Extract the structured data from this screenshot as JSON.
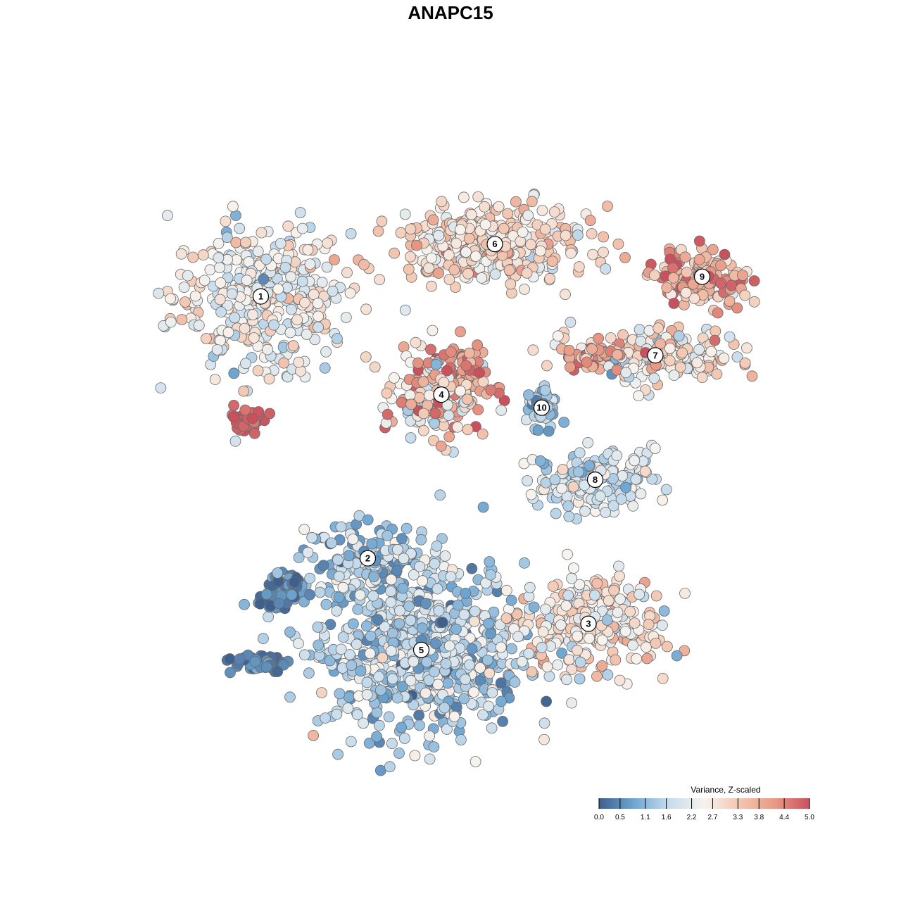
{
  "chart_data": {
    "type": "scatter",
    "title": "ANAPC15",
    "xlabel": "",
    "ylabel": "",
    "grid": false,
    "legend": {
      "title": "Variance, Z-scaled",
      "placement": "bottom-right",
      "min": 0.0,
      "max": 5.0,
      "ticks": [
        "0.0",
        "0.5",
        "1.1",
        "1.6",
        "2.2",
        "2.7",
        "3.3",
        "3.8",
        "4.4",
        "5.0"
      ],
      "tick_values": [
        0.0,
        0.5,
        1.1,
        1.6,
        2.2,
        2.7,
        3.3,
        3.8,
        4.4,
        5.0
      ]
    },
    "colors": {
      "low": "#3f5f8c",
      "mid_low": "#6fa6d2",
      "light_blue": "#c6dcec",
      "mid": "#f7f3ee",
      "light_red": "#f3c6b0",
      "mid_high": "#e99a86",
      "high": "#c9505d"
    },
    "x_range": [
      -50,
      50
    ],
    "y_range": [
      -50,
      50
    ],
    "clusters": [
      {
        "label": "1",
        "x": -31,
        "y": 23,
        "sx": 12,
        "sy": 10,
        "n": 380,
        "mean": 2.4,
        "sd": 0.55
      },
      {
        "label": "2",
        "x": -15,
        "y": -17,
        "sx": 9,
        "sy": 5,
        "n": 140,
        "mean": 1.3,
        "sd": 0.7
      },
      {
        "label": "3",
        "x": 18,
        "y": -27,
        "sx": 10,
        "sy": 7,
        "n": 260,
        "mean": 2.7,
        "sd": 0.6
      },
      {
        "label": "4",
        "x": -4,
        "y": 8,
        "sx": 6,
        "sy": 6,
        "n": 230,
        "mean": 3.0,
        "sd": 1.1
      },
      {
        "label": "5",
        "x": -7,
        "y": -31,
        "sx": 14,
        "sy": 12,
        "n": 720,
        "mean": 1.5,
        "sd": 0.6
      },
      {
        "label": "6",
        "x": 4,
        "y": 31,
        "sx": 13,
        "sy": 5,
        "n": 380,
        "mean": 2.9,
        "sd": 0.55
      },
      {
        "label": "7",
        "x": 28,
        "y": 14,
        "sx": 11,
        "sy": 4,
        "n": 220,
        "mean": 2.8,
        "sd": 0.8
      },
      {
        "label": "8",
        "x": 19,
        "y": -5,
        "sx": 8,
        "sy": 4,
        "n": 180,
        "mean": 1.9,
        "sd": 0.5
      },
      {
        "label": "9",
        "x": 35,
        "y": 26,
        "sx": 6,
        "sy": 4,
        "n": 140,
        "mean": 3.9,
        "sd": 0.7
      },
      {
        "label": "10",
        "x": 11,
        "y": 6,
        "sx": 2,
        "sy": 3,
        "n": 55,
        "mean": 1.1,
        "sd": 0.5
      }
    ],
    "extra_groups": [
      {
        "x": -33,
        "y": 4,
        "sx": 2.5,
        "sy": 1.5,
        "n": 45,
        "mean": 4.8,
        "sd": 0.2
      },
      {
        "x": -28,
        "y": -22,
        "sx": 3,
        "sy": 2.5,
        "n": 90,
        "mean": 0.5,
        "sd": 0.4
      },
      {
        "x": -31,
        "y": -33,
        "sx": 3.5,
        "sy": 1.5,
        "n": 45,
        "mean": 0.4,
        "sd": 0.3
      },
      {
        "x": 19,
        "y": 14,
        "sx": 4,
        "sy": 1.5,
        "n": 40,
        "mean": 4.3,
        "sd": 0.4
      },
      {
        "x": 0,
        "y": 12,
        "sx": 3,
        "sy": 2.5,
        "n": 45,
        "mean": 4.2,
        "sd": 0.5
      }
    ]
  }
}
